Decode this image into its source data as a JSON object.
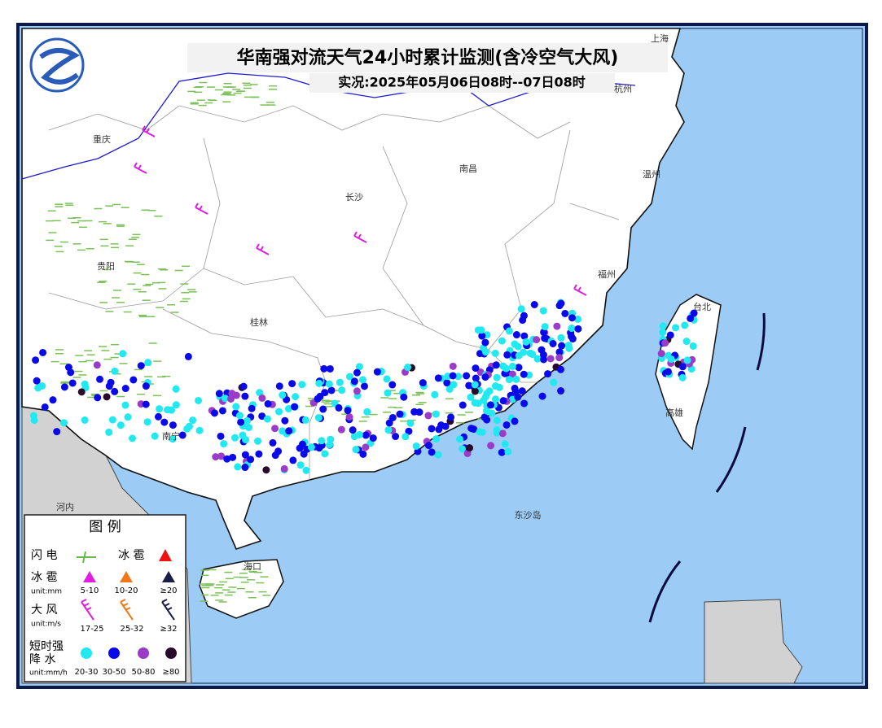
{
  "header": {
    "title": "华南强对流天气24小时累计监测(含冷空气大风)",
    "subtitle": "实况:2025年05月06日08时--07日08时"
  },
  "places": [
    "上海",
    "杭州",
    "重庆",
    "南昌",
    "长沙",
    "温州",
    "贵阳",
    "福州",
    "台北",
    "桂林",
    "高雄",
    "南宁",
    "河内",
    "东沙岛",
    "海口"
  ],
  "legend": {
    "title": "图 例",
    "lightning": "闪 电",
    "hail": "冰 雹",
    "hail_row": {
      "label": "冰 雹",
      "unit": "unit:mm",
      "classes": [
        "5-10",
        "10-20",
        "≥20"
      ]
    },
    "wind_row": {
      "label": "大 风",
      "unit": "unit:m/s",
      "classes": [
        "17-25",
        "25-32",
        "≥32"
      ]
    },
    "rain_row": {
      "label_1": "短时强",
      "label_2": "降 水",
      "unit": "unit:mm/h",
      "classes": [
        "20-30",
        "30-50",
        "50-80",
        "≥80"
      ]
    }
  }
}
